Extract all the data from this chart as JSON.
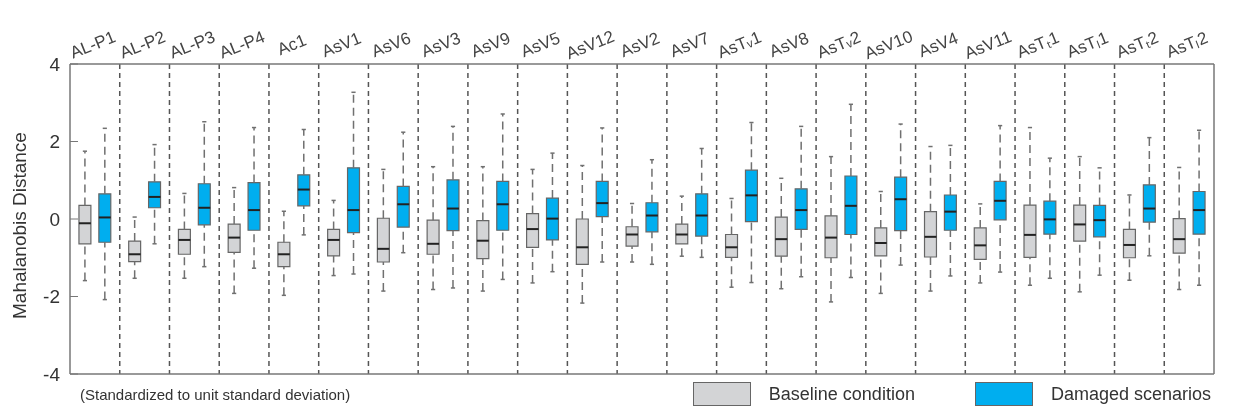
{
  "chart_data": {
    "type": "box",
    "ylabel": "Mahalanobis Distance",
    "ylim": [
      -4,
      4
    ],
    "yticks": [
      -4,
      -2,
      0,
      2,
      4
    ],
    "grid": "x",
    "legend": "bottom right",
    "annotations": [
      "(Standardized to unit standard deviation)"
    ],
    "categories": [
      "AL-P1",
      "AL-P2",
      "AL-P3",
      "AL-P4",
      "Ac1",
      "AsV1",
      "AsV6",
      "AsV3",
      "AsV9",
      "AsV5",
      "AsV12",
      "AsV2",
      "AsV7",
      "AsTᵥ1",
      "AsV8",
      "AsTᵥ2",
      "AsV10",
      "AsV4",
      "AsV11",
      "AsTₜ1",
      "AsTₗ1",
      "AsTₜ2",
      "AsTₗ2"
    ],
    "series": [
      {
        "name": "Baseline condition",
        "color": "#d3d4d6",
        "boxes": [
          {
            "low": -1.59,
            "q1": -0.64,
            "median": -0.11,
            "q3": 0.35,
            "high": 1.75
          },
          {
            "low": -1.53,
            "q1": -1.1,
            "median": -0.91,
            "q3": -0.57,
            "high": 0.05
          },
          {
            "low": -1.53,
            "q1": -0.91,
            "median": -0.54,
            "q3": -0.27,
            "high": 0.66
          },
          {
            "low": -1.92,
            "q1": -0.86,
            "median": -0.48,
            "q3": -0.13,
            "high": 0.81
          },
          {
            "low": -1.97,
            "q1": -1.23,
            "median": -0.91,
            "q3": -0.6,
            "high": 0.2
          },
          {
            "low": -1.46,
            "q1": -0.95,
            "median": -0.54,
            "q3": -0.27,
            "high": 0.48
          },
          {
            "low": -1.86,
            "q1": -1.11,
            "median": -0.77,
            "q3": 0.02,
            "high": 1.28
          },
          {
            "low": -1.82,
            "q1": -0.91,
            "median": -0.64,
            "q3": -0.03,
            "high": 1.35
          },
          {
            "low": -1.86,
            "q1": -1.02,
            "median": -0.56,
            "q3": -0.04,
            "high": 1.35
          },
          {
            "low": -1.65,
            "q1": -0.73,
            "median": -0.26,
            "q3": 0.14,
            "high": 1.28
          },
          {
            "low": -2.17,
            "q1": -1.17,
            "median": -0.73,
            "q3": 0,
            "high": 1.38
          },
          {
            "low": -1.11,
            "q1": -0.7,
            "median": -0.4,
            "q3": -0.2,
            "high": 0.4
          },
          {
            "low": -0.96,
            "q1": -0.64,
            "median": -0.4,
            "q3": -0.13,
            "high": 0.59
          },
          {
            "low": -1.76,
            "q1": -0.99,
            "median": -0.73,
            "q3": -0.4,
            "high": 0.53
          },
          {
            "low": -1.8,
            "q1": -0.96,
            "median": -0.52,
            "q3": 0.05,
            "high": 1.05
          },
          {
            "low": -2.14,
            "q1": -1.0,
            "median": -0.48,
            "q3": 0.08,
            "high": 1.61
          },
          {
            "low": -1.92,
            "q1": -0.95,
            "median": -0.62,
            "q3": -0.23,
            "high": 0.71
          },
          {
            "low": -1.86,
            "q1": -0.98,
            "median": -0.46,
            "q3": 0.19,
            "high": 1.87
          },
          {
            "low": -1.65,
            "q1": -1.04,
            "median": -0.68,
            "q3": -0.23,
            "high": 0.39
          },
          {
            "low": -1.71,
            "q1": -0.99,
            "median": -0.41,
            "q3": 0.36,
            "high": 2.36
          },
          {
            "low": -1.88,
            "q1": -0.57,
            "median": -0.14,
            "q3": 0.36,
            "high": 1.61
          },
          {
            "low": -1.58,
            "q1": -1.0,
            "median": -0.67,
            "q3": -0.27,
            "high": 0.62
          },
          {
            "low": -1.82,
            "q1": -0.88,
            "median": -0.52,
            "q3": 0.01,
            "high": 1.33
          }
        ]
      },
      {
        "name": "Damaged scenarios",
        "color": "#00aeef",
        "boxes": [
          {
            "low": -2.08,
            "q1": -0.6,
            "median": 0.04,
            "q3": 0.65,
            "high": 2.34
          },
          {
            "low": -0.64,
            "q1": 0.29,
            "median": 0.57,
            "q3": 0.96,
            "high": 1.92
          },
          {
            "low": -1.23,
            "q1": -0.15,
            "median": 0.29,
            "q3": 0.91,
            "high": 2.51
          },
          {
            "low": -1.27,
            "q1": -0.29,
            "median": 0.23,
            "q3": 0.94,
            "high": 2.36
          },
          {
            "low": -0.41,
            "q1": 0.34,
            "median": 0.76,
            "q3": 1.14,
            "high": 2.31
          },
          {
            "low": -1.42,
            "q1": -0.35,
            "median": 0.23,
            "q3": 1.32,
            "high": 3.27
          },
          {
            "low": -0.87,
            "q1": -0.21,
            "median": 0.38,
            "q3": 0.84,
            "high": 2.24
          },
          {
            "low": -1.78,
            "q1": -0.3,
            "median": 0.27,
            "q3": 1.01,
            "high": 2.39
          },
          {
            "low": -1.56,
            "q1": -0.29,
            "median": 0.38,
            "q3": 0.97,
            "high": 2.71
          },
          {
            "low": -1.36,
            "q1": -0.54,
            "median": 0.01,
            "q3": 0.54,
            "high": 1.7
          },
          {
            "low": -1.11,
            "q1": 0.06,
            "median": 0.41,
            "q3": 0.97,
            "high": 2.35
          },
          {
            "low": -1.17,
            "q1": -0.33,
            "median": 0.09,
            "q3": 0.42,
            "high": 1.53
          },
          {
            "low": -0.99,
            "q1": -0.44,
            "median": 0.09,
            "q3": 0.65,
            "high": 1.82
          },
          {
            "low": -1.64,
            "q1": -0.07,
            "median": 0.61,
            "q3": 1.26,
            "high": 2.49
          },
          {
            "low": -1.49,
            "q1": -0.27,
            "median": 0.23,
            "q3": 0.78,
            "high": 2.39
          },
          {
            "low": -1.51,
            "q1": -0.4,
            "median": 0.34,
            "q3": 1.11,
            "high": 2.96
          },
          {
            "low": -1.19,
            "q1": -0.3,
            "median": 0.51,
            "q3": 1.08,
            "high": 2.45
          },
          {
            "low": -1.47,
            "q1": -0.29,
            "median": 0.19,
            "q3": 0.62,
            "high": 1.9
          },
          {
            "low": -1.37,
            "q1": -0.02,
            "median": 0.47,
            "q3": 0.97,
            "high": 2.41
          },
          {
            "low": -1.53,
            "q1": -0.39,
            "median": -0.01,
            "q3": 0.46,
            "high": 1.57
          },
          {
            "low": -1.45,
            "q1": -0.46,
            "median": -0.03,
            "q3": 0.35,
            "high": 1.32
          },
          {
            "low": -0.95,
            "q1": -0.08,
            "median": 0.27,
            "q3": 0.88,
            "high": 2.1
          },
          {
            "low": -1.71,
            "q1": -0.39,
            "median": 0.23,
            "q3": 0.71,
            "high": 2.29
          }
        ]
      }
    ]
  }
}
